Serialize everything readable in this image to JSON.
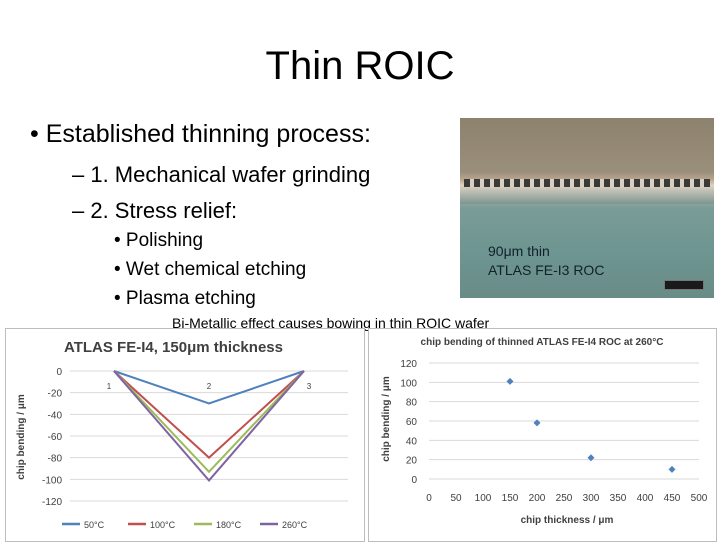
{
  "slide": {
    "title": "Thin ROIC",
    "bullet_main": "• Established thinning process:",
    "sub_bullets": [
      "– 1. Mechanical wafer grinding",
      "– 2. Stress relief:"
    ],
    "sub_sub_bullets": [
      "• Polishing",
      "• Wet chemical etching",
      "• Plasma etching"
    ],
    "photo_caption": [
      "90μm thin",
      "ATLAS FE-I3 ROC"
    ],
    "charts_caption": "Bi-Metallic effect causes bowing in thin ROIC wafer"
  },
  "chart_data": [
    {
      "type": "line",
      "title": "ATLAS FE-I4, 150μm thickness",
      "xlabel": "",
      "ylabel": "chip bending / μm",
      "categories": [
        "1",
        "2",
        "3"
      ],
      "y_ticks": [
        0,
        -20,
        -40,
        -60,
        -80,
        -100,
        -120
      ],
      "ylim": [
        -120,
        0
      ],
      "grid": true,
      "legend_position": "bottom",
      "series": [
        {
          "name": "50°C",
          "color": "#4f81bd",
          "values": [
            0,
            -30,
            0
          ]
        },
        {
          "name": "100°C",
          "color": "#c0504d",
          "values": [
            0,
            -80,
            0
          ]
        },
        {
          "name": "180°C",
          "color": "#9bbb59",
          "values": [
            0,
            -93,
            0
          ]
        },
        {
          "name": "260°C",
          "color": "#8064a2",
          "values": [
            0,
            -101,
            0
          ]
        }
      ]
    },
    {
      "type": "scatter",
      "title": "chip bending of thinned ATLAS FE-I4 ROC at 260°C",
      "xlabel": "chip thickness / μm",
      "ylabel": "chip bending / μm",
      "x_ticks": [
        0,
        50,
        100,
        150,
        200,
        250,
        300,
        350,
        400,
        450,
        500
      ],
      "y_ticks": [
        0,
        20,
        40,
        60,
        80,
        100,
        120
      ],
      "xlim": [
        0,
        500
      ],
      "ylim": [
        0,
        120
      ],
      "grid": true,
      "marker_color": "#4f81bd",
      "points": [
        {
          "x": 150,
          "y": 101
        },
        {
          "x": 200,
          "y": 58
        },
        {
          "x": 300,
          "y": 22
        },
        {
          "x": 450,
          "y": 10
        }
      ]
    }
  ]
}
